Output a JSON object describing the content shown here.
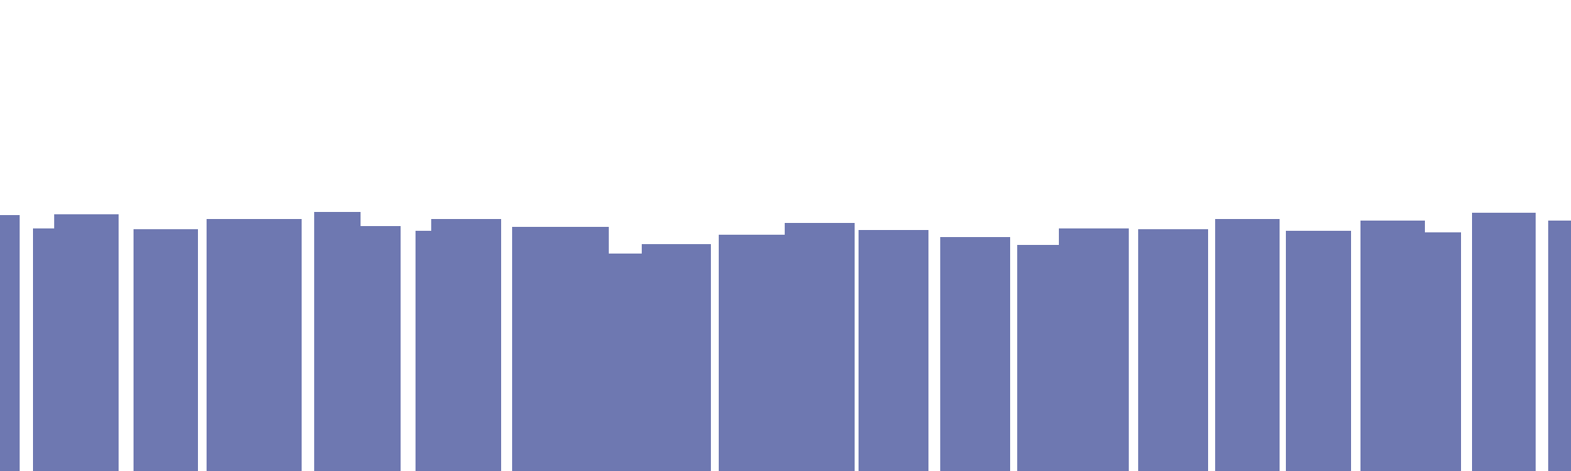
{
  "chart_data": {
    "type": "bar",
    "title": "",
    "xlabel": "",
    "ylabel": "",
    "ylim": [
      0,
      600
    ],
    "grid": false,
    "legend": "none",
    "bar_color": "#6e78b1",
    "values": [
      326,
      309,
      327,
      308,
      321,
      330,
      312,
      306,
      321,
      311,
      277,
      289,
      301,
      316,
      307,
      298,
      288,
      309,
      308,
      321,
      306,
      319,
      304,
      329,
      319
    ]
  }
}
